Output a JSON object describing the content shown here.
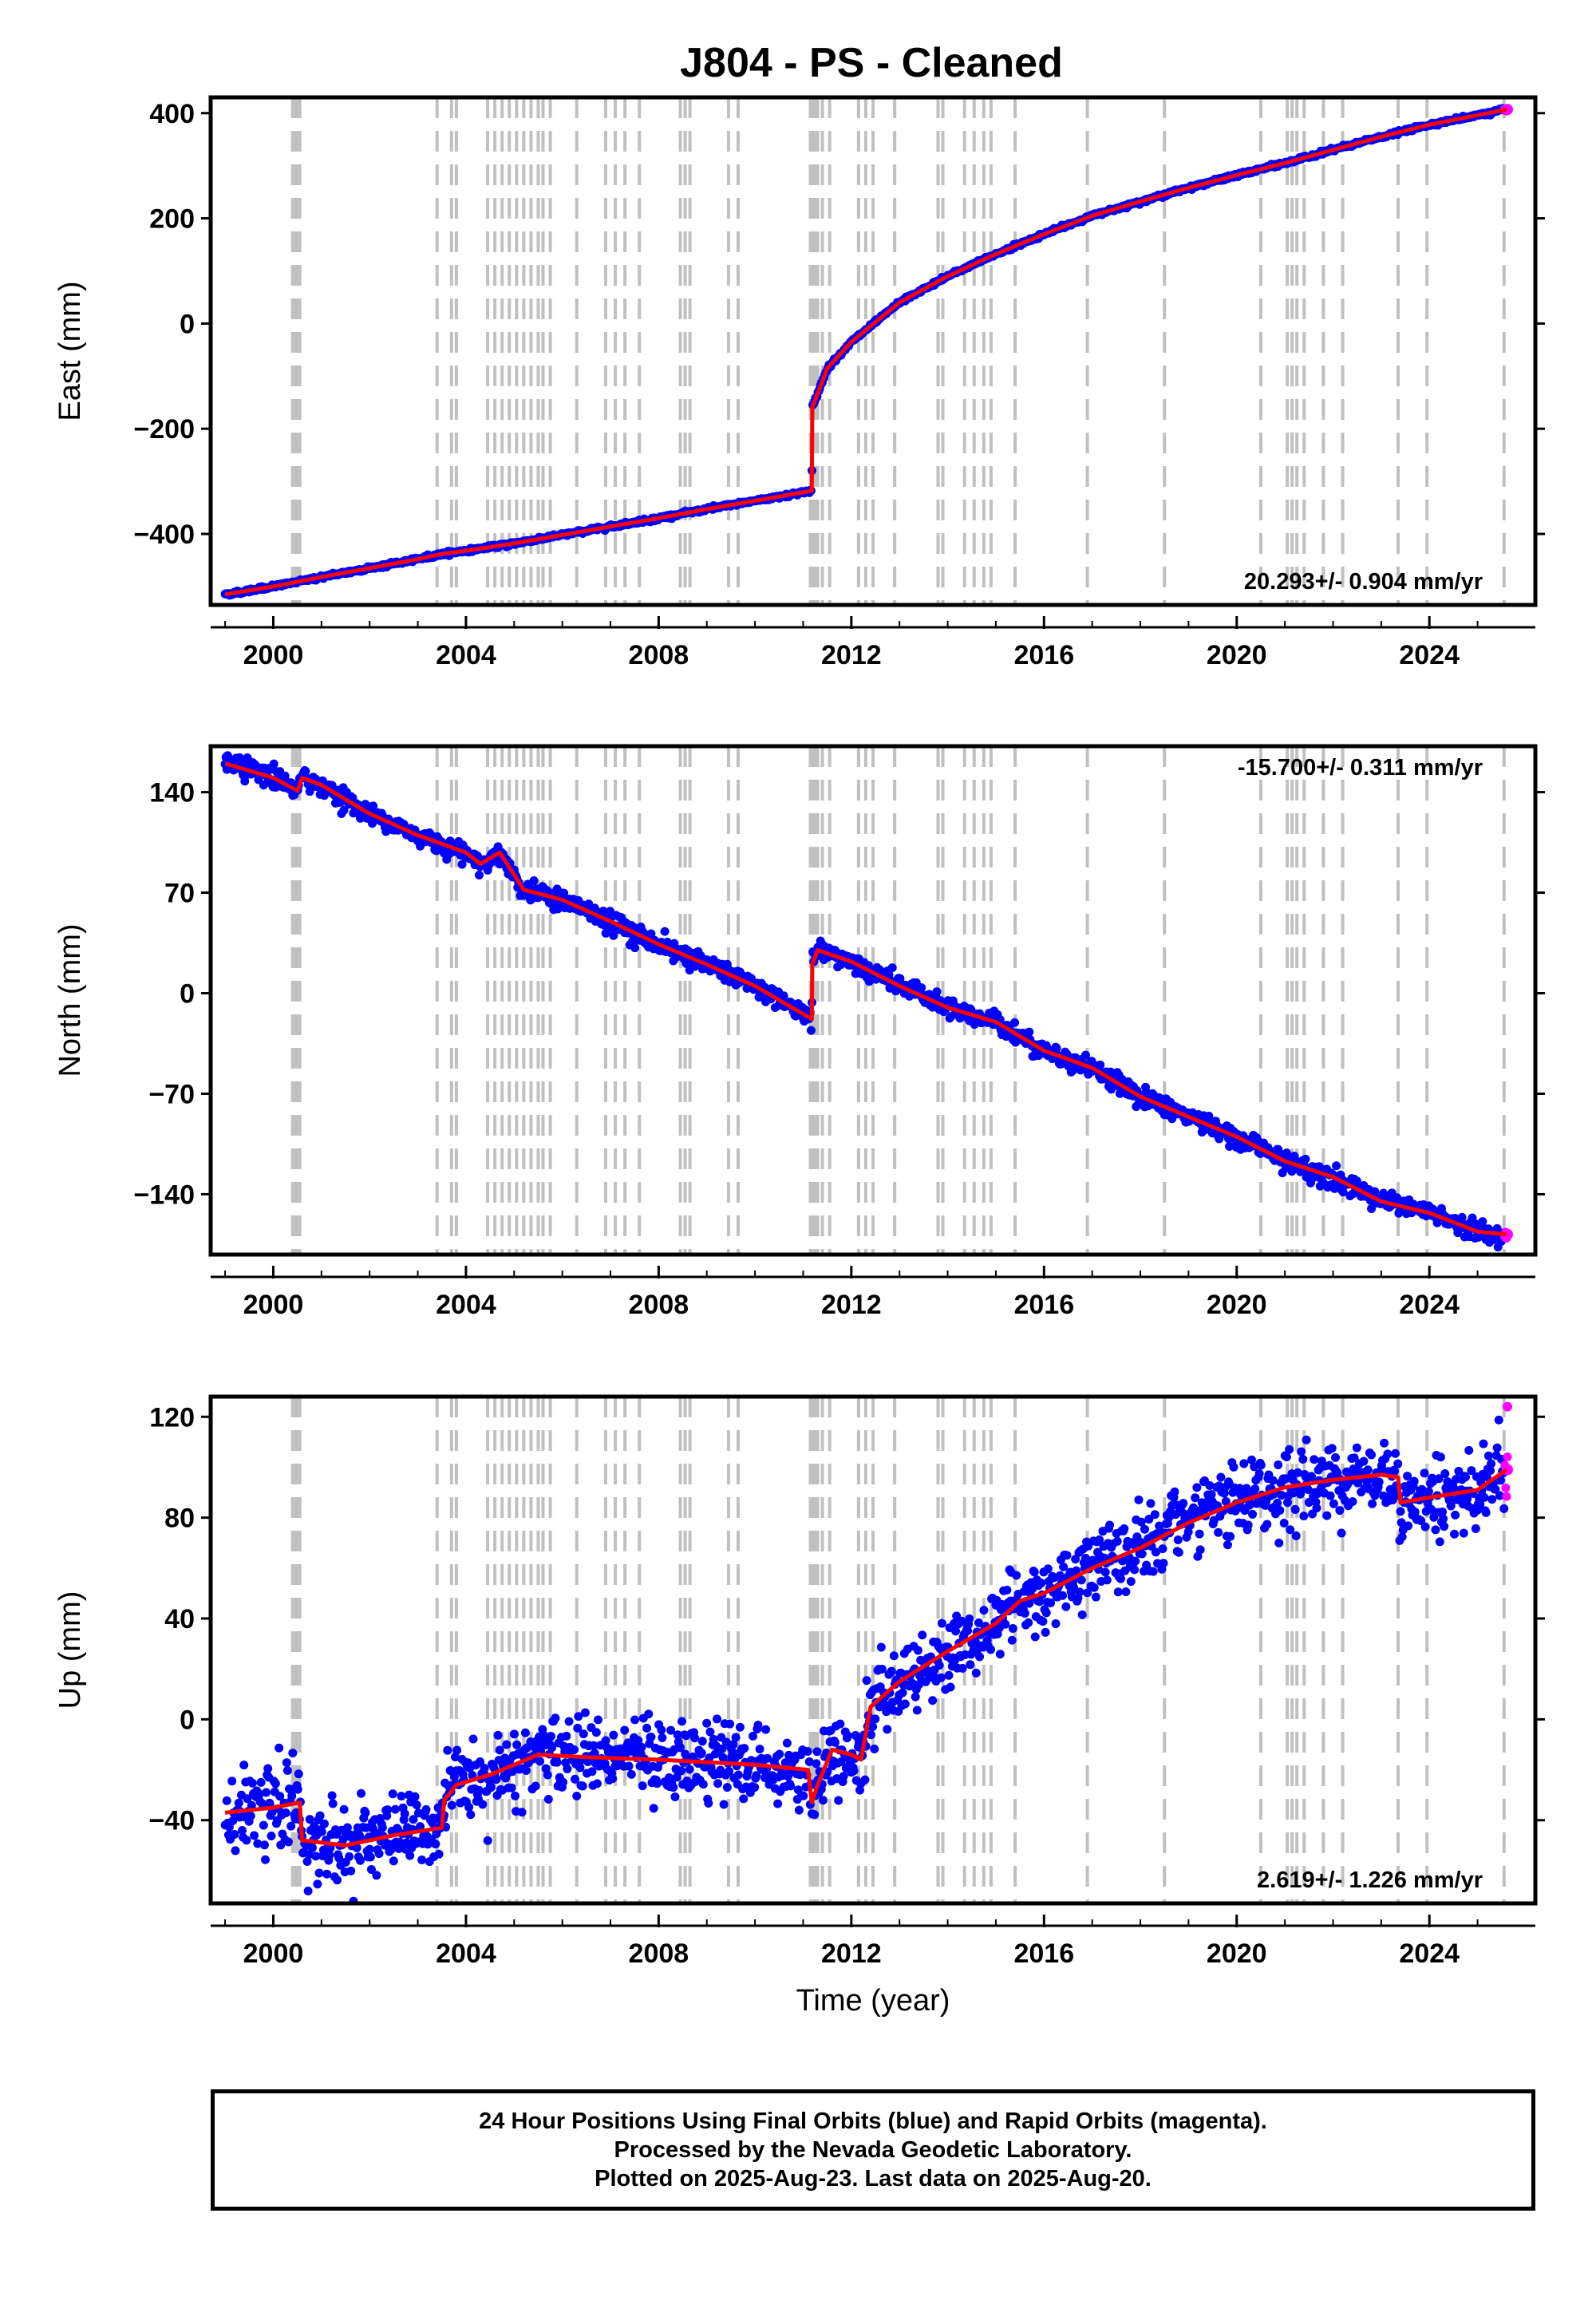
{
  "title": "J804  - PS - Cleaned",
  "colors": {
    "final": "#0000ff",
    "rapid": "#ff00ff",
    "model": "#ff0000",
    "events": "#c0c0c0"
  },
  "chart_data": [
    {
      "type": "scatter",
      "component": "East",
      "ylabel": "East (mm)",
      "xlim": [
        1998.7,
        2026.2
      ],
      "ylim": [
        -535,
        430
      ],
      "yticks": [
        -400,
        -200,
        0,
        200,
        400
      ],
      "xticks": [
        2000,
        2004,
        2008,
        2012,
        2016,
        2020,
        2024
      ],
      "rate_label": "20.293+/- 0.904 mm/yr",
      "rate_position": "bottom-right",
      "trend": [
        [
          1999.0,
          -515
        ],
        [
          2000.0,
          -500
        ],
        [
          2001.0,
          -482
        ],
        [
          2002.0,
          -465
        ],
        [
          2003.0,
          -448
        ],
        [
          2003.5,
          -438
        ],
        [
          2004.0,
          -432
        ],
        [
          2005.0,
          -418
        ],
        [
          2006.0,
          -402
        ],
        [
          2007.0,
          -386
        ],
        [
          2008.0,
          -370
        ],
        [
          2009.0,
          -353
        ],
        [
          2010.0,
          -337
        ],
        [
          2011.18,
          -318
        ],
        [
          2011.19,
          -160
        ],
        [
          2011.5,
          -85
        ],
        [
          2012.0,
          -35
        ],
        [
          2013.0,
          40
        ],
        [
          2014.0,
          90
        ],
        [
          2015.0,
          132
        ],
        [
          2016.0,
          170
        ],
        [
          2017.0,
          205
        ],
        [
          2018.0,
          232
        ],
        [
          2019.0,
          258
        ],
        [
          2020.0,
          282
        ],
        [
          2021.0,
          305
        ],
        [
          2022.0,
          330
        ],
        [
          2023.0,
          355
        ],
        [
          2024.0,
          378
        ],
        [
          2025.6,
          407
        ]
      ],
      "scatter": 1.2,
      "rapid_end": 2025.62
    },
    {
      "type": "scatter",
      "component": "North",
      "ylabel": "North (mm)",
      "xlim": [
        1998.7,
        2026.2
      ],
      "ylim": [
        -182,
        172
      ],
      "yticks": [
        -140,
        -70,
        0,
        70,
        140
      ],
      "xticks": [
        2000,
        2004,
        2008,
        2012,
        2016,
        2020,
        2024
      ],
      "rate_label": "-15.700+/- 0.311 mm/yr",
      "rate_position": "top-right",
      "trend": [
        [
          1999.0,
          160
        ],
        [
          2000.0,
          150
        ],
        [
          2000.5,
          141
        ],
        [
          2000.6,
          150
        ],
        [
          2001.0,
          145
        ],
        [
          2002.0,
          125
        ],
        [
          2003.0,
          110
        ],
        [
          2004.0,
          98
        ],
        [
          2004.3,
          90
        ],
        [
          2004.7,
          98
        ],
        [
          2005.2,
          72
        ],
        [
          2006.0,
          65
        ],
        [
          2007.0,
          50
        ],
        [
          2008.0,
          34
        ],
        [
          2009.0,
          20
        ],
        [
          2010.0,
          5
        ],
        [
          2011.18,
          -18
        ],
        [
          2011.19,
          20
        ],
        [
          2011.3,
          30
        ],
        [
          2012.0,
          22
        ],
        [
          2013.0,
          5
        ],
        [
          2014.0,
          -10
        ],
        [
          2015.0,
          -20
        ],
        [
          2016.0,
          -40
        ],
        [
          2017.0,
          -52
        ],
        [
          2018.0,
          -72
        ],
        [
          2019.0,
          -86
        ],
        [
          2020.0,
          -100
        ],
        [
          2021.0,
          -117
        ],
        [
          2022.0,
          -128
        ],
        [
          2023.0,
          -145
        ],
        [
          2024.0,
          -153
        ],
        [
          2025.0,
          -166
        ],
        [
          2025.6,
          -168
        ]
      ],
      "scatter": 2.6,
      "rapid_end": 2025.62
    },
    {
      "type": "scatter",
      "component": "Up",
      "ylabel": "Up (mm)",
      "xlim": [
        1998.7,
        2026.2
      ],
      "ylim": [
        -73,
        128
      ],
      "yticks": [
        -40,
        0,
        40,
        80,
        120
      ],
      "xticks": [
        2000,
        2004,
        2008,
        2012,
        2016,
        2020,
        2024
      ],
      "xlabel": "Time (year)",
      "rate_label": "2.619+/- 1.226 mm/yr",
      "rate_position": "bottom-right",
      "trend": [
        [
          1999.0,
          -37
        ],
        [
          2000.0,
          -35
        ],
        [
          2000.55,
          -33
        ],
        [
          2000.6,
          -48
        ],
        [
          2001.5,
          -50
        ],
        [
          2002.5,
          -46
        ],
        [
          2003.5,
          -43
        ],
        [
          2003.55,
          -32
        ],
        [
          2003.8,
          -26
        ],
        [
          2004.5,
          -22
        ],
        [
          2005.5,
          -14
        ],
        [
          2006.5,
          -15
        ],
        [
          2008.0,
          -16
        ],
        [
          2009.0,
          -17
        ],
        [
          2010.0,
          -18
        ],
        [
          2011.1,
          -20
        ],
        [
          2011.18,
          -33
        ],
        [
          2011.3,
          -26
        ],
        [
          2011.6,
          -12
        ],
        [
          2012.0,
          -14
        ],
        [
          2012.2,
          -16
        ],
        [
          2012.4,
          5
        ],
        [
          2013.0,
          15
        ],
        [
          2014.0,
          27
        ],
        [
          2015.0,
          38
        ],
        [
          2015.5,
          47
        ],
        [
          2016.0,
          50
        ],
        [
          2017.0,
          60
        ],
        [
          2018.0,
          68
        ],
        [
          2019.0,
          78
        ],
        [
          2020.0,
          86
        ],
        [
          2021.0,
          92
        ],
        [
          2022.0,
          95
        ],
        [
          2023.0,
          97
        ],
        [
          2023.35,
          96
        ],
        [
          2023.4,
          86
        ],
        [
          2024.0,
          88
        ],
        [
          2025.0,
          91
        ],
        [
          2025.6,
          99
        ]
      ],
      "scatter": 5.5,
      "rapid_end": 2025.62,
      "rapid_outlier": [
        2025.62,
        124
      ]
    }
  ],
  "event_lines": [
    2000.4,
    2000.45,
    2000.5,
    2000.55,
    2003.4,
    2003.7,
    2003.8,
    2004.45,
    2004.6,
    2004.75,
    2004.9,
    2005.05,
    2005.2,
    2005.35,
    2005.5,
    2005.6,
    2005.75,
    2006.3,
    2006.9,
    2007.1,
    2007.3,
    2007.6,
    2008.45,
    2008.55,
    2008.65,
    2009.45,
    2009.65,
    2011.15,
    2011.2,
    2011.25,
    2011.3,
    2011.4,
    2011.55,
    2012.15,
    2012.3,
    2012.45,
    2012.9,
    2013.8,
    2013.9,
    2014.35,
    2014.55,
    2014.75,
    2014.9,
    2015.4,
    2016.9,
    2018.5,
    2020.5,
    2021.05,
    2021.15,
    2021.25,
    2021.4,
    2021.8,
    2022.2,
    2023.35,
    2023.95,
    2025.55
  ]
}
